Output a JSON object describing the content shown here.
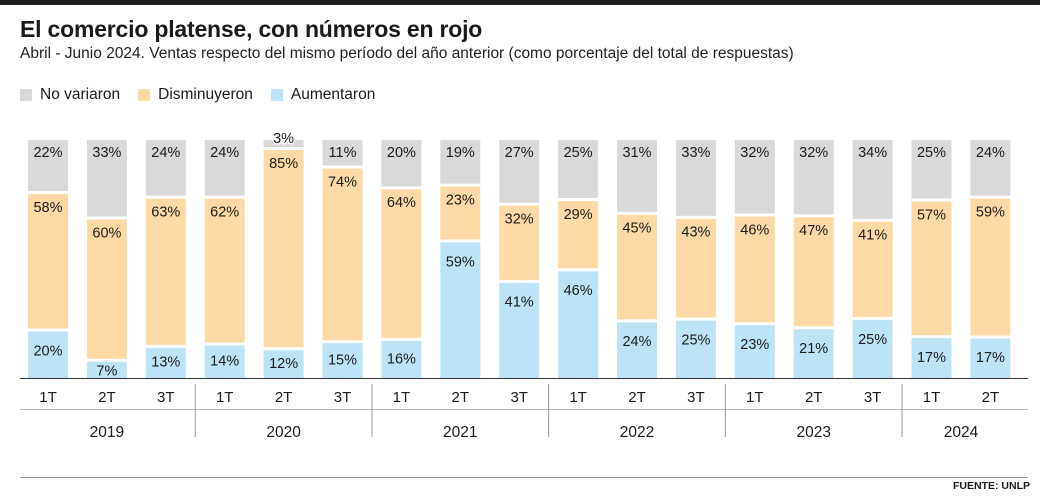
{
  "title": "El comercio platense, con números en rojo",
  "subtitle": "Abril - Junio 2024. Ventas respecto del mismo período del año anterior (como porcentaje del total de respuestas)",
  "source": "FUENTE: UNLP",
  "colors": {
    "no_variaron": "#d9d9d9",
    "disminuyeron": "#fdd9a6",
    "aumentaron": "#bde3f7"
  },
  "chart_data": {
    "type": "bar",
    "stacked": true,
    "series": [
      {
        "name": "No variaron",
        "color": "#d9d9d9",
        "values": [
          22,
          33,
          24,
          24,
          3,
          11,
          20,
          19,
          27,
          25,
          31,
          33,
          32,
          32,
          34,
          25,
          24
        ]
      },
      {
        "name": "Disminuyeron",
        "color": "#fdd9a6",
        "values": [
          58,
          60,
          63,
          62,
          85,
          74,
          64,
          23,
          32,
          29,
          45,
          43,
          46,
          47,
          41,
          57,
          59
        ]
      },
      {
        "name": "Aumentaron",
        "color": "#bde3f7",
        "values": [
          20,
          7,
          13,
          14,
          12,
          15,
          16,
          59,
          41,
          46,
          24,
          25,
          23,
          21,
          25,
          17,
          17
        ]
      }
    ],
    "categories": [
      "1T",
      "2T",
      "3T",
      "1T",
      "2T",
      "3T",
      "1T",
      "2T",
      "3T",
      "1T",
      "2T",
      "3T",
      "1T",
      "2T",
      "3T",
      "1T",
      "2T"
    ],
    "years": [
      {
        "label": "2019",
        "count": 3
      },
      {
        "label": "2020",
        "count": 3
      },
      {
        "label": "2021",
        "count": 3
      },
      {
        "label": "2022",
        "count": 3
      },
      {
        "label": "2023",
        "count": 3
      },
      {
        "label": "2024",
        "count": 2
      }
    ],
    "unit": "%",
    "ylim": [
      0,
      100
    ],
    "legend_position": "top-left",
    "grid": false
  }
}
